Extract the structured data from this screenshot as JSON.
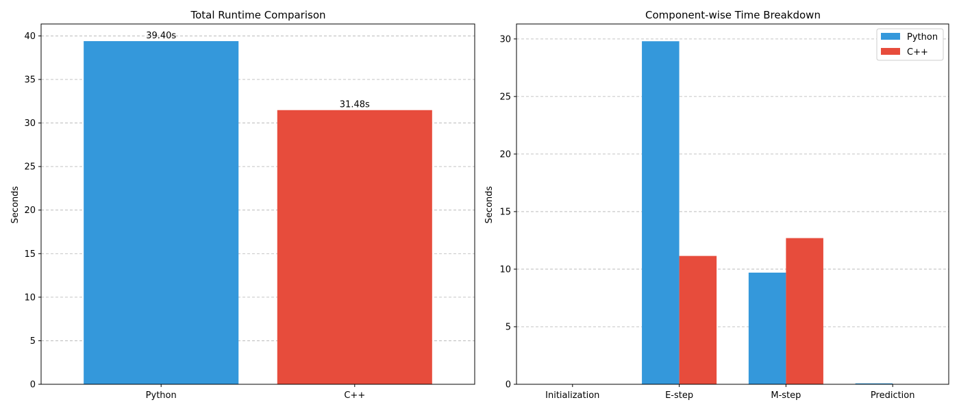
{
  "chart_data": [
    {
      "type": "bar",
      "title": "Total Runtime Comparison",
      "xlabel": "",
      "ylabel": "Seconds",
      "categories": [
        "Python",
        "C++"
      ],
      "values": [
        39.4,
        31.48
      ],
      "data_labels": [
        "39.40s",
        "31.48s"
      ],
      "colors": [
        "#3498db",
        "#e74c3c"
      ],
      "ylim": [
        0,
        41.37
      ],
      "yticks": [
        0,
        5,
        10,
        15,
        20,
        25,
        30,
        35,
        40
      ],
      "grid": "y-dashed"
    },
    {
      "type": "bar",
      "title": "Component-wise Time Breakdown",
      "xlabel": "",
      "ylabel": "Seconds",
      "categories": [
        "Initialization",
        "E-step",
        "M-step",
        "Prediction"
      ],
      "series": [
        {
          "name": "Python",
          "color": "#3498db",
          "values": [
            0.02,
            29.8,
            9.7,
            0.08
          ]
        },
        {
          "name": "C++",
          "color": "#e74c3c",
          "values": [
            0.01,
            11.15,
            12.7,
            0.02
          ]
        }
      ],
      "ylim": [
        0,
        31.3
      ],
      "yticks": [
        0,
        5,
        10,
        15,
        20,
        25,
        30
      ],
      "grid": "y-dashed",
      "legend": "top-right"
    }
  ]
}
